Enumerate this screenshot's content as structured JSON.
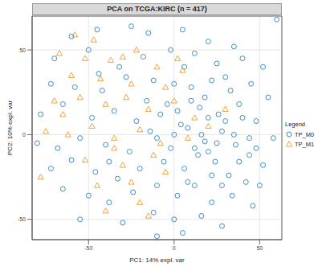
{
  "chart_data": {
    "type": "scatter",
    "title": "PCA on TCGA:KIRC (n = 417)",
    "x_label": "PC1: 14% expl. var",
    "y_label": "PC2: 10% expl. var",
    "legend_title": "Legend",
    "legend": "right",
    "grid": true,
    "xlim": [
      -83,
      63
    ],
    "ylim": [
      -62,
      70
    ],
    "xticks": [
      -50,
      0,
      50
    ],
    "yticks": [
      -50,
      0,
      50
    ],
    "series": [
      {
        "name": "TP_M0",
        "color": "#3f8fc4",
        "marker": "circle",
        "x": [
          -60,
          -45,
          -25,
          -15,
          5,
          20,
          35,
          60,
          -70,
          -50,
          -32,
          -18,
          -2,
          12,
          25,
          40,
          52,
          -72,
          -58,
          -42,
          -28,
          -12,
          0,
          10,
          22,
          33,
          45,
          55,
          -78,
          -65,
          -48,
          -35,
          -22,
          -8,
          4,
          15,
          26,
          38,
          48,
          58,
          -80,
          -68,
          -55,
          -40,
          -26,
          -14,
          -2,
          8,
          18,
          28,
          36,
          44,
          52,
          -72,
          -60,
          -46,
          -33,
          -20,
          -6,
          6,
          14,
          24,
          32,
          42,
          50,
          -65,
          -50,
          -38,
          -24,
          -10,
          2,
          12,
          22,
          34,
          46,
          -55,
          -30,
          -12,
          0,
          16,
          28,
          -10,
          5,
          10,
          18,
          20,
          25,
          30,
          35,
          16,
          12,
          22,
          28,
          8,
          0,
          -4,
          -10,
          2,
          40,
          44,
          30,
          6,
          -38,
          -44,
          -16,
          38,
          48,
          20
        ],
        "values": [
          58,
          62,
          64,
          60,
          62,
          55,
          52,
          68,
          45,
          50,
          40,
          46,
          50,
          48,
          42,
          45,
          40,
          30,
          28,
          26,
          34,
          32,
          30,
          28,
          32,
          26,
          30,
          22,
          12,
          18,
          10,
          14,
          8,
          12,
          6,
          16,
          12,
          18,
          8,
          -2,
          -5,
          -8,
          -2,
          -6,
          -10,
          2,
          -8,
          4,
          -4,
          2,
          -6,
          -12,
          -18,
          -20,
          -15,
          -22,
          -26,
          -20,
          -16,
          -20,
          -12,
          -16,
          -24,
          -28,
          -30,
          -32,
          -36,
          -40,
          -34,
          -30,
          -36,
          -30,
          -40,
          -36,
          -42,
          -50,
          -52,
          -46,
          -50,
          -48,
          -54,
          -60,
          -58,
          20,
          22,
          10,
          -5,
          8,
          0,
          0,
          -8,
          -24,
          -30,
          -28,
          0,
          18,
          -2,
          14,
          10,
          -2,
          34,
          40,
          -16,
          36,
          20,
          -16,
          -8,
          -10
        ]
      },
      {
        "name": "TP_M1",
        "color": "#f0a33c",
        "marker": "triangle",
        "x": [
          -58,
          -47,
          -67,
          -52,
          -37,
          -30,
          -10,
          -60,
          -43,
          -25,
          -5,
          5,
          -70,
          -55,
          -40,
          -28,
          -15,
          0,
          12,
          -75,
          -62,
          -48,
          -35,
          -20,
          -8,
          8,
          20,
          -78,
          -52,
          -30,
          -12,
          -45,
          -25,
          -5,
          -40,
          -20,
          -15,
          30,
          -35,
          -65,
          2,
          -22
        ],
        "values": [
          59,
          56,
          48,
          45,
          44,
          46,
          40,
          35,
          33,
          30,
          28,
          38,
          20,
          22,
          18,
          22,
          15,
          20,
          10,
          2,
          0,
          5,
          -2,
          3,
          -5,
          -2,
          5,
          -25,
          -15,
          -18,
          -12,
          -30,
          -28,
          -22,
          -45,
          -40,
          -48,
          15,
          -8,
          12,
          45,
          50
        ]
      }
    ]
  }
}
